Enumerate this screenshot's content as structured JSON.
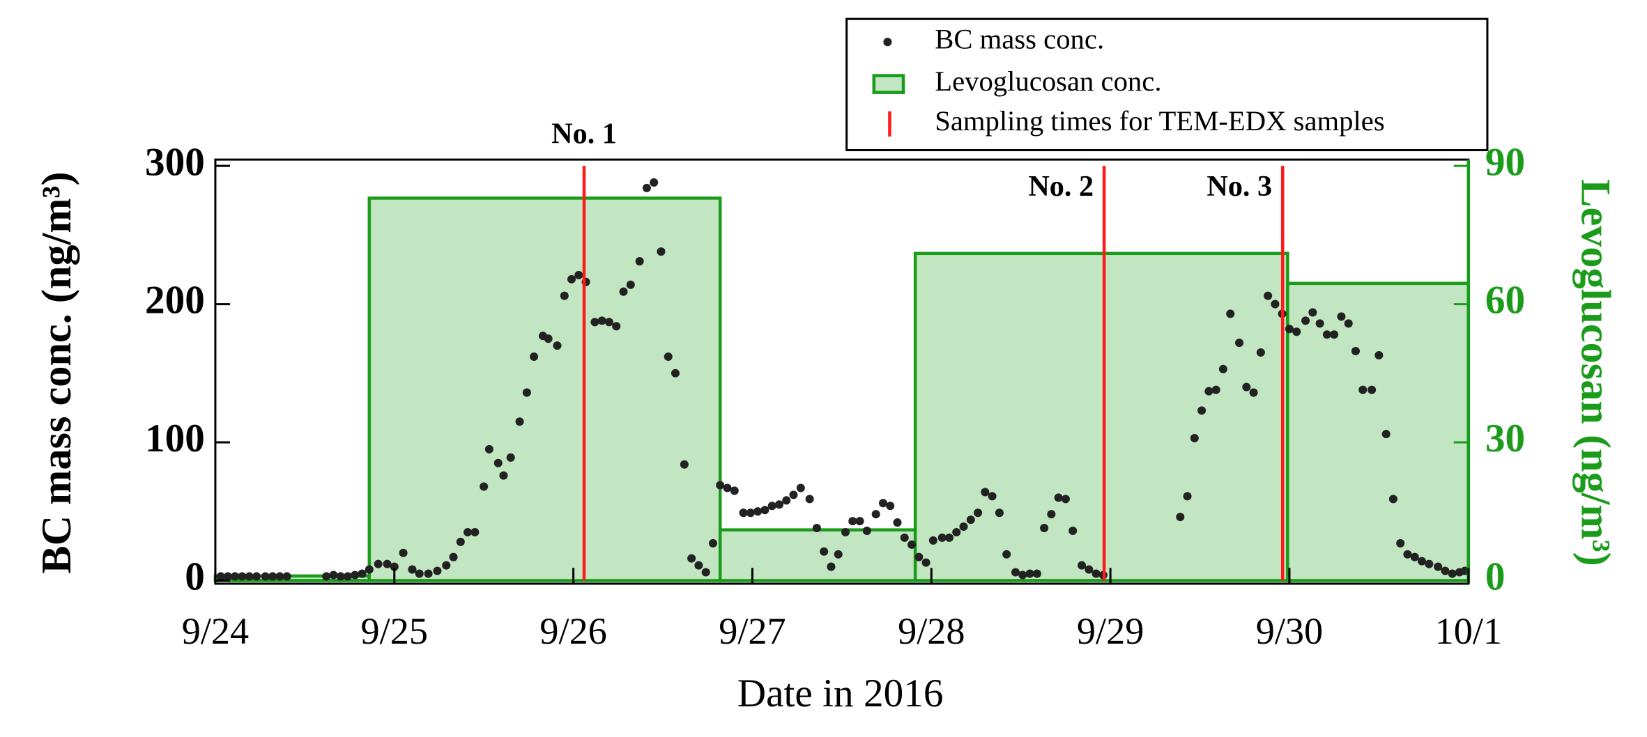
{
  "chart_data": {
    "type": "scatter",
    "x_label": "Date in 2016",
    "y_label": "BC mass conc. (ng/m³)",
    "y2_label": "Levoglucosan (ng/m³)",
    "xlim": [
      0,
      7
    ],
    "xticks": [
      {
        "value": 0,
        "label": "9/24"
      },
      {
        "value": 1,
        "label": "9/25"
      },
      {
        "value": 2,
        "label": "9/26"
      },
      {
        "value": 3,
        "label": "9/27"
      },
      {
        "value": 4,
        "label": "9/28"
      },
      {
        "value": 5,
        "label": "9/29"
      },
      {
        "value": 6,
        "label": "9/30"
      },
      {
        "value": 7,
        "label": "10/1"
      }
    ],
    "ylim": [
      0,
      300
    ],
    "yticks": [
      0,
      100,
      200,
      300
    ],
    "y2lim": [
      0,
      90
    ],
    "y2ticks": [
      0,
      30,
      60,
      90
    ],
    "legend": "upper right",
    "series": [
      {
        "name": "BC mass conc.",
        "type": "scatter",
        "color": "#222222",
        "x": [
          0.03,
          0.07,
          0.11,
          0.15,
          0.19,
          0.23,
          0.28,
          0.32,
          0.36,
          0.4,
          0.62,
          0.66,
          0.7,
          0.74,
          0.78,
          0.82,
          0.86,
          0.91,
          0.96,
          1.0,
          1.05,
          1.1,
          1.14,
          1.19,
          1.24,
          1.29,
          1.33,
          1.37,
          1.41,
          1.45,
          1.5,
          1.53,
          1.58,
          1.61,
          1.65,
          1.7,
          1.74,
          1.78,
          1.83,
          1.86,
          1.91,
          1.95,
          1.99,
          2.03,
          2.07,
          2.12,
          2.16,
          2.2,
          2.24,
          2.28,
          2.32,
          2.37,
          2.41,
          2.45,
          2.49,
          2.53,
          2.57,
          2.62,
          2.66,
          2.7,
          2.74,
          2.78,
          2.82,
          2.86,
          2.9,
          2.95,
          2.99,
          3.03,
          3.07,
          3.11,
          3.15,
          3.19,
          3.23,
          3.27,
          3.32,
          3.36,
          3.4,
          3.44,
          3.48,
          3.52,
          3.56,
          3.6,
          3.64,
          3.69,
          3.73,
          3.77,
          3.81,
          3.85,
          3.89,
          3.93,
          3.97,
          4.01,
          4.06,
          4.1,
          4.14,
          4.18,
          4.22,
          4.26,
          4.3,
          4.34,
          4.38,
          4.42,
          4.47,
          4.51,
          4.55,
          4.59,
          4.63,
          4.67,
          4.71,
          4.75,
          4.79,
          4.84,
          4.88,
          4.92,
          4.96,
          5.39,
          5.43,
          5.47,
          5.51,
          5.55,
          5.59,
          5.63,
          5.67,
          5.72,
          5.76,
          5.8,
          5.84,
          5.88,
          5.92,
          5.96,
          6.0,
          6.04,
          6.09,
          6.13,
          6.17,
          6.21,
          6.25,
          6.29,
          6.33,
          6.37,
          6.41,
          6.46,
          6.5,
          6.54,
          6.58,
          6.62,
          6.66,
          6.7,
          6.74,
          6.78,
          6.83,
          6.87,
          6.91,
          6.95,
          6.98
        ],
        "values": [
          3,
          3,
          3,
          3,
          3,
          3,
          3,
          3,
          3,
          3,
          3,
          4,
          3,
          3,
          4,
          5,
          8,
          12,
          12,
          10,
          20,
          8,
          5,
          5,
          7,
          11,
          17,
          28,
          35,
          35,
          68,
          95,
          85,
          76,
          89,
          115,
          136,
          162,
          177,
          175,
          170,
          206,
          218,
          221,
          216,
          187,
          188,
          187,
          184,
          209,
          214,
          231,
          284,
          288,
          238,
          162,
          150,
          84,
          16,
          11,
          6,
          27,
          69,
          67,
          65,
          49,
          49,
          50,
          51,
          54,
          55,
          58,
          62,
          67,
          59,
          38,
          21,
          10,
          19,
          35,
          43,
          43,
          36,
          48,
          56,
          54,
          42,
          31,
          26,
          17,
          13,
          29,
          31,
          31,
          35,
          39,
          44,
          49,
          64,
          61,
          49,
          19,
          6,
          4,
          5,
          5,
          38,
          48,
          60,
          59,
          36,
          11,
          8,
          5,
          4,
          46,
          61,
          103,
          123,
          137,
          138,
          153,
          193,
          172,
          140,
          136,
          165,
          206,
          200,
          193,
          182,
          180,
          188,
          194,
          186,
          178,
          178,
          191,
          186,
          166,
          138,
          138,
          163,
          106,
          59,
          27,
          19,
          17,
          14,
          12,
          10,
          7,
          5,
          6,
          7
        ]
      },
      {
        "name": "Levoglucosan conc.",
        "type": "step",
        "axis": "y2",
        "color": "#1a9c1a",
        "fill": "#c2e6c2",
        "bins": [
          0,
          0.86,
          2.82,
          3.91,
          5.99,
          7.0
        ],
        "values": [
          1,
          83,
          11,
          71,
          64.5
        ]
      },
      {
        "name": "Sampling times for TEM-EDX samples",
        "type": "vline",
        "color": "#ff1a1a",
        "x": [
          2.06,
          4.965,
          5.962
        ],
        "labels": [
          "No. 1",
          "No. 2",
          "No. 3"
        ]
      }
    ]
  }
}
